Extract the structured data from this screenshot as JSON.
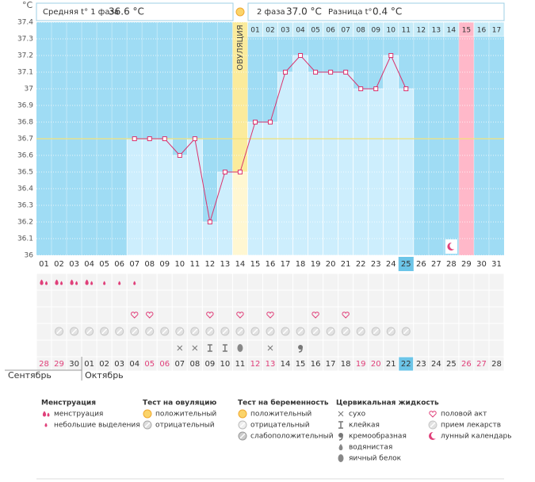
{
  "header": {
    "phase1_label": "Средняя t° 1 фаза",
    "phase1_value": "36.6 °C",
    "phase2_label": "2 фаза",
    "phase2_value": "37.0 °C",
    "diff_label": "Разница t°",
    "diff_value": "0.4 °C"
  },
  "chart_data": {
    "type": "line",
    "y_unit": "°C",
    "ovulation_label": "ОВУЛЯЦИЯ",
    "categories": [
      "01",
      "02",
      "03",
      "04",
      "05",
      "06",
      "07",
      "08",
      "09",
      "10",
      "11",
      "12",
      "13",
      "14",
      "15",
      "16",
      "17",
      "18",
      "19",
      "20",
      "21",
      "22",
      "23",
      "24",
      "25",
      "26",
      "27",
      "28",
      "29",
      "30",
      "31"
    ],
    "values": [
      null,
      null,
      null,
      null,
      null,
      null,
      36.7,
      36.7,
      36.7,
      36.6,
      36.7,
      36.2,
      36.5,
      36.5,
      36.8,
      36.8,
      37.1,
      37.2,
      37.1,
      37.1,
      37.1,
      37.0,
      37.0,
      37.2,
      37.0,
      null,
      null,
      null,
      null,
      null,
      null
    ],
    "color": "#d9336e",
    "coverline": 36.7,
    "phase2_days": [
      "01",
      "02",
      "03",
      "04",
      "05",
      "06",
      "07",
      "08",
      "09",
      "10",
      "11",
      "12",
      "13",
      "14",
      "15",
      "16",
      "17"
    ],
    "ylim": [
      36,
      37.4
    ],
    "yticks": [
      36,
      36.1,
      36.2,
      36.3,
      36.4,
      36.5,
      36.6,
      36.7,
      36.8,
      36.9,
      37,
      37.1,
      37.2,
      37.3,
      37.4
    ],
    "grid": true
  },
  "calendar": {
    "dates": [
      "28",
      "29",
      "30",
      "01",
      "02",
      "03",
      "04",
      "05",
      "06",
      "07",
      "08",
      "09",
      "10",
      "11",
      "12",
      "13",
      "14",
      "15",
      "16",
      "17",
      "18",
      "19",
      "20",
      "21",
      "22",
      "23",
      "24",
      "25",
      "26",
      "27",
      "28"
    ],
    "months": [
      "Сентябрь",
      "Октябрь"
    ]
  },
  "legend": [
    {
      "title": "Менструация",
      "items": [
        "менструация",
        "небольшие выделения"
      ]
    },
    {
      "title": "Тест на овуляцию",
      "items": [
        "положительный",
        "отрицательный"
      ]
    },
    {
      "title": "Тест на беременность",
      "items": [
        "положительный",
        "отрицательный",
        "слабоположительный"
      ]
    },
    {
      "title": "Цервикальная жидкость",
      "items": [
        "сухо",
        "клейкая",
        "кремообразная",
        "водянистая",
        "яичный белок"
      ]
    },
    {
      "items": [
        "половой акт",
        "прием лекарств",
        "лунный календарь"
      ]
    }
  ]
}
